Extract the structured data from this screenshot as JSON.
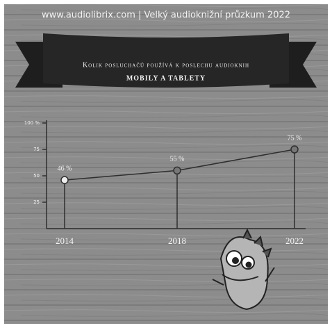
{
  "site_header": "www.audiolibrix.com | Velký audioknižní průzkum 2022",
  "chart_data": {
    "type": "line",
    "title": "Kolik posluchačů používá k poslechu audioknih",
    "subtitle": "mobily a tablety",
    "categories": [
      "2014",
      "2018",
      "2022"
    ],
    "values": [
      46,
      55,
      75
    ],
    "value_labels": [
      "46 %",
      "55 %",
      "75 %"
    ],
    "color": "#2e2e2e",
    "ylim": [
      0,
      100
    ],
    "yticks": [
      25,
      50,
      75,
      {
        "value": 100,
        "label": "100 %"
      }
    ],
    "grid": false
  }
}
